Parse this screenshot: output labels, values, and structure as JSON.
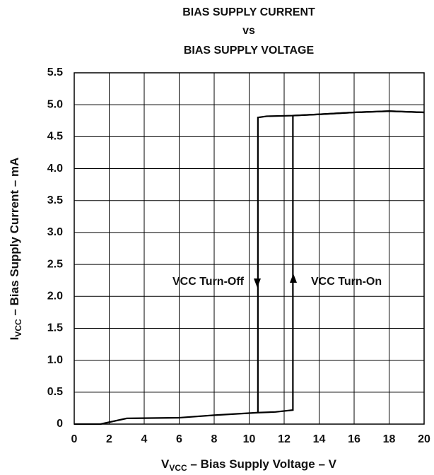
{
  "chart_data": {
    "type": "line",
    "title": [
      "BIAS SUPPLY CURRENT",
      "vs",
      "BIAS SUPPLY VOLTAGE"
    ],
    "xlabel": [
      "V",
      "VCC",
      " – Bias Supply Voltage – V"
    ],
    "ylabel": [
      "I",
      "VCC",
      " – Bias Supply Current – mA"
    ],
    "xlim": [
      0,
      20
    ],
    "xticks": [
      0,
      2,
      4,
      6,
      8,
      10,
      12,
      14,
      16,
      18,
      20
    ],
    "ylim": [
      0,
      5.5
    ],
    "yticks": [
      0,
      0.5,
      {
        "value": 1,
        "label": "1.0"
      },
      1.5,
      {
        "value": 2,
        "label": "2.0"
      },
      2.5,
      {
        "value": 3,
        "label": "3.0"
      },
      3.5,
      {
        "value": 4,
        "label": "4.0"
      },
      4.5,
      {
        "value": 5,
        "label": "5.0"
      },
      5.5
    ],
    "grid": true,
    "series": [
      {
        "name": "VCC Turn-On",
        "color": "#000000",
        "x": [
          0,
          1.5,
          3,
          6,
          8,
          10.5,
          11.5,
          12.5,
          12.5,
          14,
          16,
          18,
          20
        ],
        "values": [
          0,
          0,
          0.09,
          0.1,
          0.14,
          0.18,
          0.19,
          0.22,
          4.83,
          4.85,
          4.88,
          4.9,
          4.88
        ]
      },
      {
        "name": "VCC Turn-Off",
        "color": "#000000",
        "x": [
          20,
          18,
          16,
          14,
          12.5,
          11,
          10.5,
          10.5
        ],
        "values": [
          4.88,
          4.9,
          4.88,
          4.85,
          4.83,
          4.82,
          4.8,
          0.18
        ]
      }
    ]
  }
}
